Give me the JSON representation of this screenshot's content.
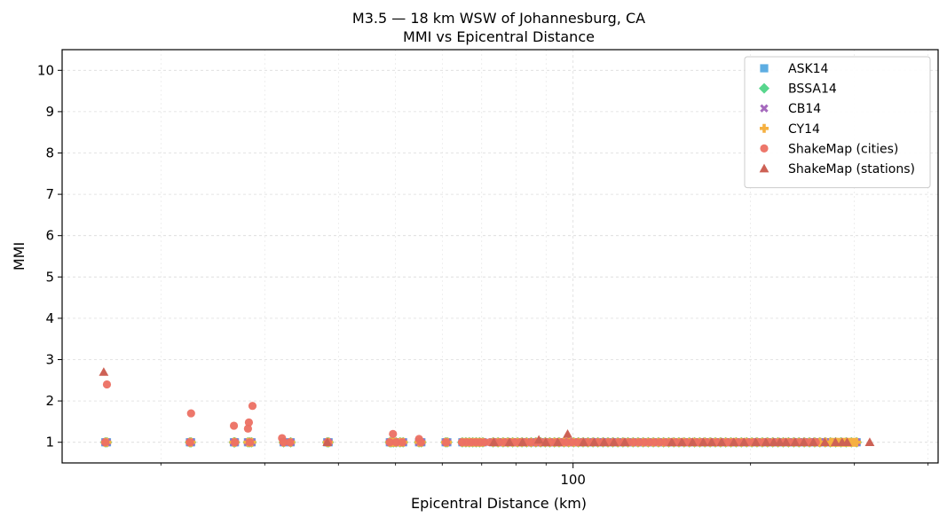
{
  "chart_data": {
    "type": "scatter",
    "title": "M3.5 — 18 km WSW of Johannesburg, CA",
    "subtitle": "MMI vs Epicentral Distance",
    "xlabel": "Epicentral Distance (km)",
    "ylabel": "MMI",
    "xscale": "log",
    "xlim": [
      13.6,
      416
    ],
    "ylim": [
      0.5,
      10.5
    ],
    "x_major_ticks": [
      100
    ],
    "x_major_tick_labels": [
      "100"
    ],
    "x_minor_ticks": [
      20,
      30,
      40,
      50,
      60,
      70,
      80,
      90,
      200,
      300,
      400
    ],
    "y_ticks": [
      1,
      2,
      3,
      4,
      5,
      6,
      7,
      8,
      9,
      10
    ],
    "y_tick_labels": [
      "1",
      "2",
      "3",
      "4",
      "5",
      "6",
      "7",
      "8",
      "9",
      "10"
    ],
    "grid": true,
    "legend_position": "top-right",
    "series": [
      {
        "name": "ASK14",
        "marker": "square",
        "color": "#5DADE2",
        "x": [
          16.1,
          16.2,
          22.4,
          22.5,
          26.6,
          26.7,
          28.1,
          28.3,
          28.5,
          32.3,
          33.2,
          38.3,
          38.5,
          48.9,
          49.2,
          49.6,
          50.1,
          50.9,
          51.5,
          54.8,
          55.3,
          60.8,
          61.2,
          64.9,
          65.8,
          66.7,
          67.6,
          68.5,
          69.4,
          70.3,
          73.2,
          74.6,
          76.1,
          77.5,
          79.0,
          80.5,
          81.9,
          83.4,
          84.9,
          86.5,
          88.1,
          89.7,
          91.3,
          93.0,
          94.7,
          96.5,
          98.3,
          100.2,
          102.1,
          104.0,
          106.0,
          108.1,
          110.2,
          112.4,
          114.6,
          116.8,
          119.1,
          121.5,
          123.9,
          126.4,
          128.9,
          131.5,
          134.1,
          136.8,
          139.6,
          142.4,
          145.3,
          148.2,
          151.2,
          154.3,
          157.5,
          160.7,
          164.0,
          167.3,
          170.8,
          174.3,
          177.9,
          181.5,
          185.2,
          189.0,
          192.9,
          196.9,
          201.0,
          205.1,
          209.4,
          213.7,
          218.1,
          222.6,
          227.2,
          231.9,
          236.7,
          241.6,
          246.6,
          251.7,
          256.9,
          262.2,
          267.7,
          273.2,
          278.8,
          284.6,
          290.5,
          296.5,
          302.6
        ],
        "y": [
          1,
          1,
          1,
          1,
          1,
          1,
          1,
          1,
          1,
          1,
          1,
          1,
          1,
          1,
          1,
          1,
          1,
          1,
          1,
          1,
          1,
          1,
          1,
          1,
          1,
          1,
          1,
          1,
          1,
          1,
          1,
          1,
          1,
          1,
          1,
          1,
          1,
          1,
          1,
          1,
          1,
          1,
          1,
          1,
          1,
          1,
          1,
          1,
          1,
          1,
          1,
          1,
          1,
          1,
          1,
          1,
          1,
          1,
          1,
          1,
          1,
          1,
          1,
          1,
          1,
          1,
          1,
          1,
          1,
          1,
          1,
          1,
          1,
          1,
          1,
          1,
          1,
          1,
          1,
          1,
          1,
          1,
          1,
          1,
          1,
          1,
          1,
          1,
          1,
          1,
          1,
          1,
          1,
          1,
          1,
          1,
          1,
          1,
          1,
          1,
          1,
          1,
          1
        ]
      },
      {
        "name": "BSSA14",
        "marker": "diamond",
        "color": "#58D68D",
        "x": [
          16.1,
          16.2,
          22.4,
          22.5,
          26.6,
          26.7,
          28.1,
          28.3,
          28.5,
          32.3,
          33.2,
          38.3,
          38.5,
          48.9,
          49.2,
          49.6,
          50.1,
          50.9,
          51.5,
          54.8,
          55.3,
          60.8,
          61.2,
          64.9,
          65.8,
          66.7,
          67.6,
          68.5,
          69.4,
          70.3,
          73.2,
          74.6,
          76.1,
          77.5,
          79.0,
          80.5,
          81.9,
          83.4,
          84.9,
          86.5,
          88.1,
          89.7,
          91.3,
          93.0,
          94.7,
          96.5,
          98.3,
          100.2,
          102.1,
          104.0,
          106.0,
          108.1,
          110.2,
          112.4,
          114.6,
          116.8,
          119.1,
          121.5,
          123.9,
          126.4,
          128.9,
          131.5,
          134.1,
          136.8,
          139.6,
          142.4,
          145.3,
          148.2,
          151.2,
          154.3,
          157.5,
          160.7,
          164.0,
          167.3,
          170.8,
          174.3,
          177.9,
          181.5,
          185.2,
          189.0,
          192.9,
          196.9,
          201.0,
          205.1,
          209.4,
          213.7,
          218.1,
          222.6,
          227.2,
          231.9,
          236.7,
          241.6,
          246.6,
          251.7,
          256.9,
          262.2,
          267.7,
          273.2,
          278.8,
          284.6,
          290.5,
          296.5,
          302.6
        ],
        "y": [
          1,
          1,
          1,
          1,
          1,
          1,
          1,
          1,
          1,
          1,
          1,
          1,
          1,
          1,
          1,
          1,
          1,
          1,
          1,
          1,
          1,
          1,
          1,
          1,
          1,
          1,
          1,
          1,
          1,
          1,
          1,
          1,
          1,
          1,
          1,
          1,
          1,
          1,
          1,
          1,
          1,
          1,
          1,
          1,
          1,
          1,
          1,
          1,
          1,
          1,
          1,
          1,
          1,
          1,
          1,
          1,
          1,
          1,
          1,
          1,
          1,
          1,
          1,
          1,
          1,
          1,
          1,
          1,
          1,
          1,
          1,
          1,
          1,
          1,
          1,
          1,
          1,
          1,
          1,
          1,
          1,
          1,
          1,
          1,
          1,
          1,
          1,
          1,
          1,
          1,
          1,
          1,
          1,
          1,
          1,
          1,
          1,
          1,
          1,
          1,
          1,
          1,
          1
        ]
      },
      {
        "name": "CB14",
        "marker": "x",
        "color": "#A569BD",
        "x": [
          16.1,
          16.2,
          22.4,
          22.5,
          26.6,
          26.7,
          28.1,
          28.3,
          28.5,
          32.3,
          33.2,
          38.3,
          38.5,
          48.9,
          49.2,
          49.6,
          50.1,
          50.9,
          51.5,
          54.8,
          55.3,
          60.8,
          61.2,
          64.9,
          65.8,
          66.7,
          67.6,
          68.5,
          69.4,
          70.3,
          73.2,
          74.6,
          76.1,
          77.5,
          79.0,
          80.5,
          81.9,
          83.4,
          84.9,
          86.5,
          88.1,
          89.7,
          91.3,
          93.0,
          94.7,
          96.5,
          98.3,
          100.2,
          102.1,
          104.0,
          106.0,
          108.1,
          110.2,
          112.4,
          114.6,
          116.8,
          119.1,
          121.5,
          123.9,
          126.4,
          128.9,
          131.5,
          134.1,
          136.8,
          139.6,
          142.4,
          145.3,
          148.2,
          151.2,
          154.3,
          157.5,
          160.7,
          164.0,
          167.3,
          170.8,
          174.3,
          177.9,
          181.5,
          185.2,
          189.0,
          192.9,
          196.9,
          201.0,
          205.1,
          209.4,
          213.7,
          218.1,
          222.6,
          227.2,
          231.9,
          236.7,
          241.6,
          246.6,
          251.7,
          256.9,
          262.2,
          267.7,
          273.2,
          278.8,
          284.6,
          290.5,
          296.5,
          302.6
        ],
        "y": [
          1,
          1,
          1,
          1,
          1,
          1,
          1,
          1,
          1,
          1,
          1,
          1,
          1,
          1,
          1,
          1,
          1,
          1,
          1,
          1,
          1,
          1,
          1,
          1,
          1,
          1,
          1,
          1,
          1,
          1,
          1,
          1,
          1,
          1,
          1,
          1,
          1,
          1,
          1,
          1,
          1,
          1,
          1,
          1,
          1,
          1,
          1,
          1,
          1,
          1,
          1,
          1,
          1,
          1,
          1,
          1,
          1,
          1,
          1,
          1,
          1,
          1,
          1,
          1,
          1,
          1,
          1,
          1,
          1,
          1,
          1,
          1,
          1,
          1,
          1,
          1,
          1,
          1,
          1,
          1,
          1,
          1,
          1,
          1,
          1,
          1,
          1,
          1,
          1,
          1,
          1,
          1,
          1,
          1,
          1,
          1,
          1,
          1,
          1,
          1,
          1,
          1,
          1
        ]
      },
      {
        "name": "CY14",
        "marker": "plus",
        "color": "#F5B041",
        "x": [
          16.1,
          16.2,
          22.4,
          22.5,
          26.6,
          26.7,
          28.1,
          28.3,
          28.5,
          32.3,
          33.2,
          38.3,
          38.5,
          48.9,
          49.2,
          49.6,
          50.1,
          50.9,
          51.5,
          54.8,
          55.3,
          60.8,
          61.2,
          64.9,
          65.8,
          66.7,
          67.6,
          68.5,
          69.4,
          70.3,
          73.2,
          74.6,
          76.1,
          77.5,
          79.0,
          80.5,
          81.9,
          83.4,
          84.9,
          86.5,
          88.1,
          89.7,
          91.3,
          93.0,
          94.7,
          96.5,
          98.3,
          100.2,
          102.1,
          104.0,
          106.0,
          108.1,
          110.2,
          112.4,
          114.6,
          116.8,
          119.1,
          121.5,
          123.9,
          126.4,
          128.9,
          131.5,
          134.1,
          136.8,
          139.6,
          142.4,
          145.3,
          148.2,
          151.2,
          154.3,
          157.5,
          160.7,
          164.0,
          167.3,
          170.8,
          174.3,
          177.9,
          181.5,
          185.2,
          189.0,
          192.9,
          196.9,
          201.0,
          205.1,
          209.4,
          213.7,
          218.1,
          222.6,
          227.2,
          231.9,
          236.7,
          241.6,
          246.6,
          251.7,
          256.9,
          262.2,
          267.7,
          273.2,
          278.8,
          284.6,
          290.5,
          296.5,
          302.6,
          262.0,
          268.0,
          275.0,
          281.0,
          288.0,
          294.0,
          300.0
        ],
        "y": [
          1,
          1,
          1,
          1,
          1,
          1,
          1,
          1,
          1,
          1,
          1,
          1,
          1,
          1,
          1,
          1,
          1,
          1,
          1,
          1,
          1,
          1,
          1,
          1,
          1,
          1,
          1,
          1,
          1,
          1,
          1,
          1,
          1,
          1,
          1,
          1,
          1,
          1,
          1,
          1,
          1,
          1,
          1,
          1,
          1,
          1,
          1,
          1,
          1,
          1,
          1,
          1,
          1,
          1,
          1,
          1,
          1,
          1,
          1,
          1,
          1,
          1,
          1,
          1,
          1,
          1,
          1,
          1,
          1,
          1,
          1,
          1,
          1,
          1,
          1,
          1,
          1,
          1,
          1,
          1,
          1,
          1,
          1,
          1,
          1,
          1,
          1,
          1,
          1,
          1,
          1,
          1,
          1,
          1,
          1,
          1,
          1,
          1,
          1,
          1,
          1,
          1,
          1,
          1,
          1,
          1,
          1,
          1,
          1,
          1
        ]
      },
      {
        "name": "ShakeMap (cities)",
        "marker": "circle",
        "color": "#EC7063",
        "x": [
          16.2,
          22.5,
          26.6,
          28.1,
          28.2,
          28.6,
          32.1,
          49.5,
          54.8,
          16.1,
          22.4,
          26.7,
          28.3,
          32.3,
          33.1,
          38.4,
          48.9,
          50.1,
          51.3,
          55.2,
          60.9,
          64.8,
          66.0,
          67.2,
          68.4,
          69.6,
          70.8,
          72.2,
          73.6,
          75.1,
          76.6,
          78.1,
          79.7,
          81.3,
          83.0,
          84.7,
          86.4,
          88.2,
          90.0,
          91.8,
          93.7,
          95.6,
          97.5,
          99.5,
          101.5,
          103.6,
          105.7,
          107.9,
          110.1,
          112.4,
          114.7,
          117.0,
          119.4,
          121.9,
          124.4,
          126.9,
          129.5,
          132.2,
          134.9,
          137.6,
          140.4,
          143.3,
          146.2,
          149.2,
          152.3,
          155.4,
          158.6,
          161.8,
          165.1,
          168.5,
          172.0,
          175.5,
          179.1,
          182.8,
          186.5,
          190.3,
          194.2,
          198.2,
          202.3,
          206.4,
          210.6,
          214.9,
          219.3,
          223.8,
          228.4,
          233.1,
          237.9,
          242.8,
          247.8,
          252.9,
          258.1
        ],
        "y": [
          2.4,
          1.7,
          1.4,
          1.33,
          1.48,
          1.88,
          1.1,
          1.2,
          1.08,
          1,
          1,
          1,
          1,
          1,
          1,
          1,
          1,
          1,
          1,
          1,
          1,
          1,
          1,
          1,
          1,
          1,
          1,
          1,
          1,
          1,
          1,
          1,
          1,
          1,
          1,
          1,
          1,
          1,
          1,
          1,
          1,
          1,
          1,
          1,
          1,
          1,
          1,
          1,
          1,
          1,
          1,
          1,
          1,
          1,
          1,
          1,
          1,
          1,
          1,
          1,
          1,
          1,
          1,
          1,
          1,
          1,
          1,
          1,
          1,
          1,
          1,
          1,
          1,
          1,
          1,
          1,
          1,
          1,
          1,
          1,
          1,
          1,
          1,
          1,
          1,
          1,
          1,
          1,
          1,
          1,
          1
        ]
      },
      {
        "name": "ShakeMap (stations)",
        "marker": "triangle",
        "color": "#CD6155",
        "x": [
          16.0,
          38.3,
          87.5,
          97.9,
          73.4,
          78.0,
          82.1,
          89.9,
          94.2,
          104.2,
          108.6,
          112.9,
          117.3,
          122.4,
          147.1,
          153.0,
          159.5,
          166.3,
          171.8,
          178.6,
          187.4,
          195.0,
          204.1,
          212.4,
          218.9,
          224.1,
          229.7,
          238.0,
          246.2,
          255.6,
          267.3,
          278.6,
          285.9,
          291.6,
          318.5
        ],
        "y": [
          2.7,
          1.0,
          1.06,
          1.2,
          1,
          1,
          1,
          1,
          1,
          1,
          1,
          1,
          1,
          1,
          1,
          1,
          1,
          1,
          1,
          1,
          1,
          1,
          1,
          1,
          1,
          1,
          1,
          1,
          1,
          1,
          1,
          1,
          1,
          1,
          1
        ]
      }
    ]
  }
}
